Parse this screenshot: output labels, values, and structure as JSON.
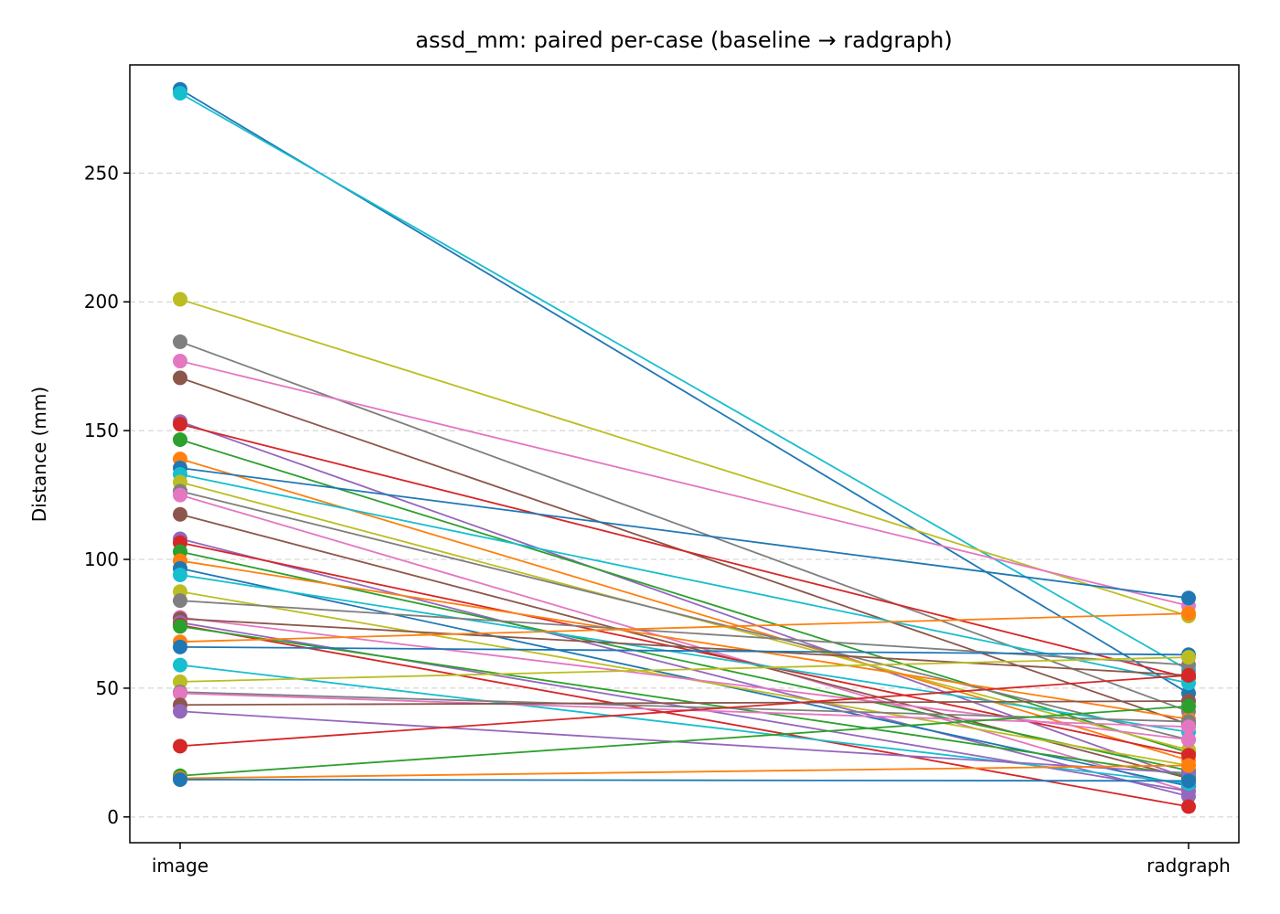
{
  "chart_data": {
    "type": "line",
    "title": "assd_mm: paired per-case (baseline → radgraph)",
    "xlabel": "",
    "ylabel": "Distance (mm)",
    "categories": [
      "image",
      "radgraph"
    ],
    "ylim": [
      -10,
      292
    ],
    "yticks": [
      0,
      50,
      100,
      150,
      200,
      250
    ],
    "grid": "horizontal dashed",
    "series": [
      {
        "color": "#1f77b4",
        "values": [
          282.5,
          48
        ]
      },
      {
        "color": "#17becf",
        "values": [
          281,
          57
        ]
      },
      {
        "color": "#bcbd22",
        "values": [
          201,
          78
        ]
      },
      {
        "color": "#7f7f7f",
        "values": [
          184.5,
          41
        ]
      },
      {
        "color": "#e377c2",
        "values": [
          177,
          82
        ]
      },
      {
        "color": "#8c564b",
        "values": [
          170.5,
          36
        ]
      },
      {
        "color": "#9467bd",
        "values": [
          153.5,
          15
        ]
      },
      {
        "color": "#d62728",
        "values": [
          152.5,
          54
        ]
      },
      {
        "color": "#2ca02c",
        "values": [
          146.5,
          25
        ]
      },
      {
        "color": "#ff7f0e",
        "values": [
          139,
          22
        ]
      },
      {
        "color": "#1f77b4",
        "values": [
          135.5,
          85
        ]
      },
      {
        "color": "#17becf",
        "values": [
          133,
          52
        ]
      },
      {
        "color": "#bcbd22",
        "values": [
          130,
          26
        ]
      },
      {
        "color": "#7f7f7f",
        "values": [
          126.5,
          30
        ]
      },
      {
        "color": "#e377c2",
        "values": [
          125,
          10
        ]
      },
      {
        "color": "#8c564b",
        "values": [
          117.5,
          15
        ]
      },
      {
        "color": "#9467bd",
        "values": [
          108,
          8
        ]
      },
      {
        "color": "#d62728",
        "values": [
          106.5,
          24
        ]
      },
      {
        "color": "#2ca02c",
        "values": [
          103,
          18
        ]
      },
      {
        "color": "#ff7f0e",
        "values": [
          99.5,
          38
        ]
      },
      {
        "color": "#1f77b4",
        "values": [
          96.5,
          12
        ]
      },
      {
        "color": "#17becf",
        "values": [
          94,
          33
        ]
      },
      {
        "color": "#bcbd22",
        "values": [
          87.5,
          20
        ]
      },
      {
        "color": "#7f7f7f",
        "values": [
          84,
          59
        ]
      },
      {
        "color": "#e377c2",
        "values": [
          77.5,
          30
        ]
      },
      {
        "color": "#8c564b",
        "values": [
          77,
          55
        ]
      },
      {
        "color": "#9467bd",
        "values": [
          75.5,
          10
        ]
      },
      {
        "color": "#d62728",
        "values": [
          74.5,
          4
        ]
      },
      {
        "color": "#2ca02c",
        "values": [
          74,
          16
        ]
      },
      {
        "color": "#ff7f0e",
        "values": [
          68,
          79
        ]
      },
      {
        "color": "#1f77b4",
        "values": [
          66,
          63
        ]
      },
      {
        "color": "#17becf",
        "values": [
          59,
          13
        ]
      },
      {
        "color": "#bcbd22",
        "values": [
          52.5,
          62
        ]
      },
      {
        "color": "#7f7f7f",
        "values": [
          48.5,
          37
        ]
      },
      {
        "color": "#e377c2",
        "values": [
          48,
          35
        ]
      },
      {
        "color": "#8c564b",
        "values": [
          43.5,
          45
        ]
      },
      {
        "color": "#9467bd",
        "values": [
          41,
          17
        ]
      },
      {
        "color": "#d62728",
        "values": [
          27.5,
          55
        ]
      },
      {
        "color": "#2ca02c",
        "values": [
          16,
          43
        ]
      },
      {
        "color": "#ff7f0e",
        "values": [
          15,
          20
        ]
      },
      {
        "color": "#1f77b4",
        "values": [
          14.5,
          14
        ]
      }
    ]
  }
}
